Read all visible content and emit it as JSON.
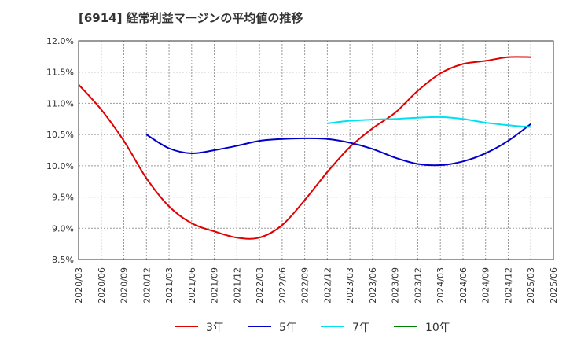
{
  "chart_data": {
    "type": "line",
    "title": "[6914]  経常利益マージンの平均値の推移",
    "xlabel": "",
    "ylabel": "",
    "ylim": [
      8.5,
      12.0
    ],
    "yticks": [
      8.5,
      9.0,
      9.5,
      10.0,
      10.5,
      11.0,
      11.5,
      12.0
    ],
    "ytick_labels": [
      "8.5%",
      "9.0%",
      "9.5%",
      "10.0%",
      "10.5%",
      "11.0%",
      "11.5%",
      "12.0%"
    ],
    "x_labels": [
      "2020/03",
      "2020/06",
      "2020/09",
      "2020/12",
      "2021/03",
      "2021/06",
      "2021/09",
      "2021/12",
      "2022/03",
      "2022/06",
      "2022/09",
      "2022/12",
      "2023/03",
      "2023/06",
      "2023/09",
      "2023/12",
      "2024/03",
      "2024/06",
      "2024/09",
      "2024/12",
      "2025/03",
      "2025/06"
    ],
    "grid": true,
    "legend_position": "bottom",
    "series": [
      {
        "name": "3年",
        "color": "#e00000",
        "values": [
          11.3,
          10.9,
          10.4,
          9.8,
          9.35,
          9.08,
          8.95,
          8.85,
          8.85,
          9.05,
          9.45,
          9.9,
          10.3,
          10.6,
          10.85,
          11.2,
          11.48,
          11.63,
          11.68,
          11.74,
          11.74
        ]
      },
      {
        "name": "5年",
        "color": "#0000c8",
        "values": [
          null,
          null,
          null,
          10.5,
          10.28,
          10.2,
          10.25,
          10.32,
          10.4,
          10.43,
          10.44,
          10.43,
          10.37,
          10.27,
          10.13,
          10.03,
          10.01,
          10.07,
          10.2,
          10.4,
          10.67
        ]
      },
      {
        "name": "7年",
        "color": "#00e0f0",
        "values": [
          null,
          null,
          null,
          null,
          null,
          null,
          null,
          null,
          null,
          null,
          null,
          10.68,
          10.72,
          10.74,
          10.75,
          10.77,
          10.78,
          10.75,
          10.69,
          10.65,
          10.62
        ]
      },
      {
        "name": "10年",
        "color": "#008000",
        "values": []
      }
    ]
  }
}
